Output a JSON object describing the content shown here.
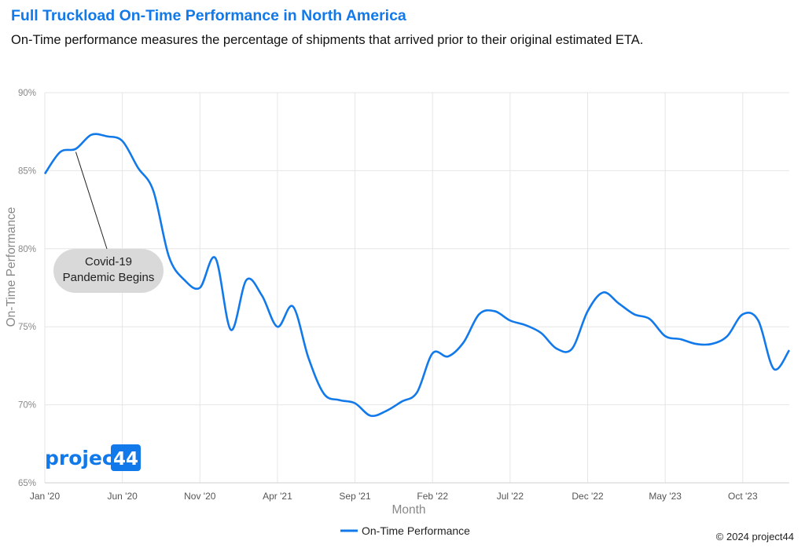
{
  "header": {
    "title": "Full Truckload On-Time Performance in North America",
    "subtitle": "On-Time performance measures the percentage of shipments that arrived prior to their original estimated ETA."
  },
  "footer": {
    "copyright": "© 2024 project44"
  },
  "logo": {
    "text_main": "project",
    "text_badge": "44"
  },
  "colors": {
    "accent": "#1279ea",
    "grid": "#e6e6e6",
    "annotation_bg": "#d9d9d9"
  },
  "chart_data": {
    "type": "line",
    "xlabel": "Month",
    "ylabel": "On-Time Performance",
    "ylim": [
      65,
      90
    ],
    "yticks": [
      65,
      70,
      75,
      80,
      85,
      90
    ],
    "ytick_labels": [
      "65%",
      "70%",
      "75%",
      "80%",
      "85%",
      "90%"
    ],
    "xticks": [
      "2020-01",
      "2020-06",
      "2020-11",
      "2021-04",
      "2021-09",
      "2022-02",
      "2022-07",
      "2022-12",
      "2023-05",
      "2023-10"
    ],
    "xtick_labels": [
      "Jan '20",
      "Jun '20",
      "Nov '20",
      "Apr '21",
      "Sep '21",
      "Feb '22",
      "Jul '22",
      "Dec '22",
      "May '23",
      "Oct '23"
    ],
    "grid": true,
    "legend_position": "bottom-center",
    "series": [
      {
        "name": "On-Time Performance",
        "color": "#1279ea",
        "x": [
          "2020-01",
          "2020-02",
          "2020-03",
          "2020-04",
          "2020-05",
          "2020-06",
          "2020-07",
          "2020-08",
          "2020-09",
          "2020-10",
          "2020-11",
          "2020-12",
          "2021-01",
          "2021-02",
          "2021-03",
          "2021-04",
          "2021-05",
          "2021-06",
          "2021-07",
          "2021-08",
          "2021-09",
          "2021-10",
          "2021-11",
          "2021-12",
          "2022-01",
          "2022-02",
          "2022-03",
          "2022-04",
          "2022-05",
          "2022-06",
          "2022-07",
          "2022-08",
          "2022-09",
          "2022-10",
          "2022-11",
          "2022-12",
          "2023-01",
          "2023-02",
          "2023-03",
          "2023-04",
          "2023-05",
          "2023-06",
          "2023-07",
          "2023-08",
          "2023-09",
          "2023-10",
          "2023-11",
          "2023-12",
          "2024-01"
        ],
        "values": [
          84.8,
          86.2,
          86.4,
          87.3,
          87.2,
          86.9,
          85.2,
          83.7,
          79.5,
          78.0,
          77.5,
          79.4,
          74.8,
          78.0,
          77.0,
          75.0,
          76.3,
          73.0,
          70.7,
          70.3,
          70.1,
          69.3,
          69.6,
          70.2,
          70.8,
          73.3,
          73.1,
          74.0,
          75.8,
          76.0,
          75.4,
          75.1,
          74.6,
          73.6,
          73.6,
          76.0,
          77.2,
          76.5,
          75.8,
          75.5,
          74.4,
          74.2,
          73.9,
          73.9,
          74.4,
          75.8,
          75.4,
          72.3,
          73.5
        ]
      }
    ],
    "annotations": [
      {
        "text_line1": "Covid-19",
        "text_line2": "Pandemic Begins",
        "points_to": "2020-03"
      }
    ]
  }
}
